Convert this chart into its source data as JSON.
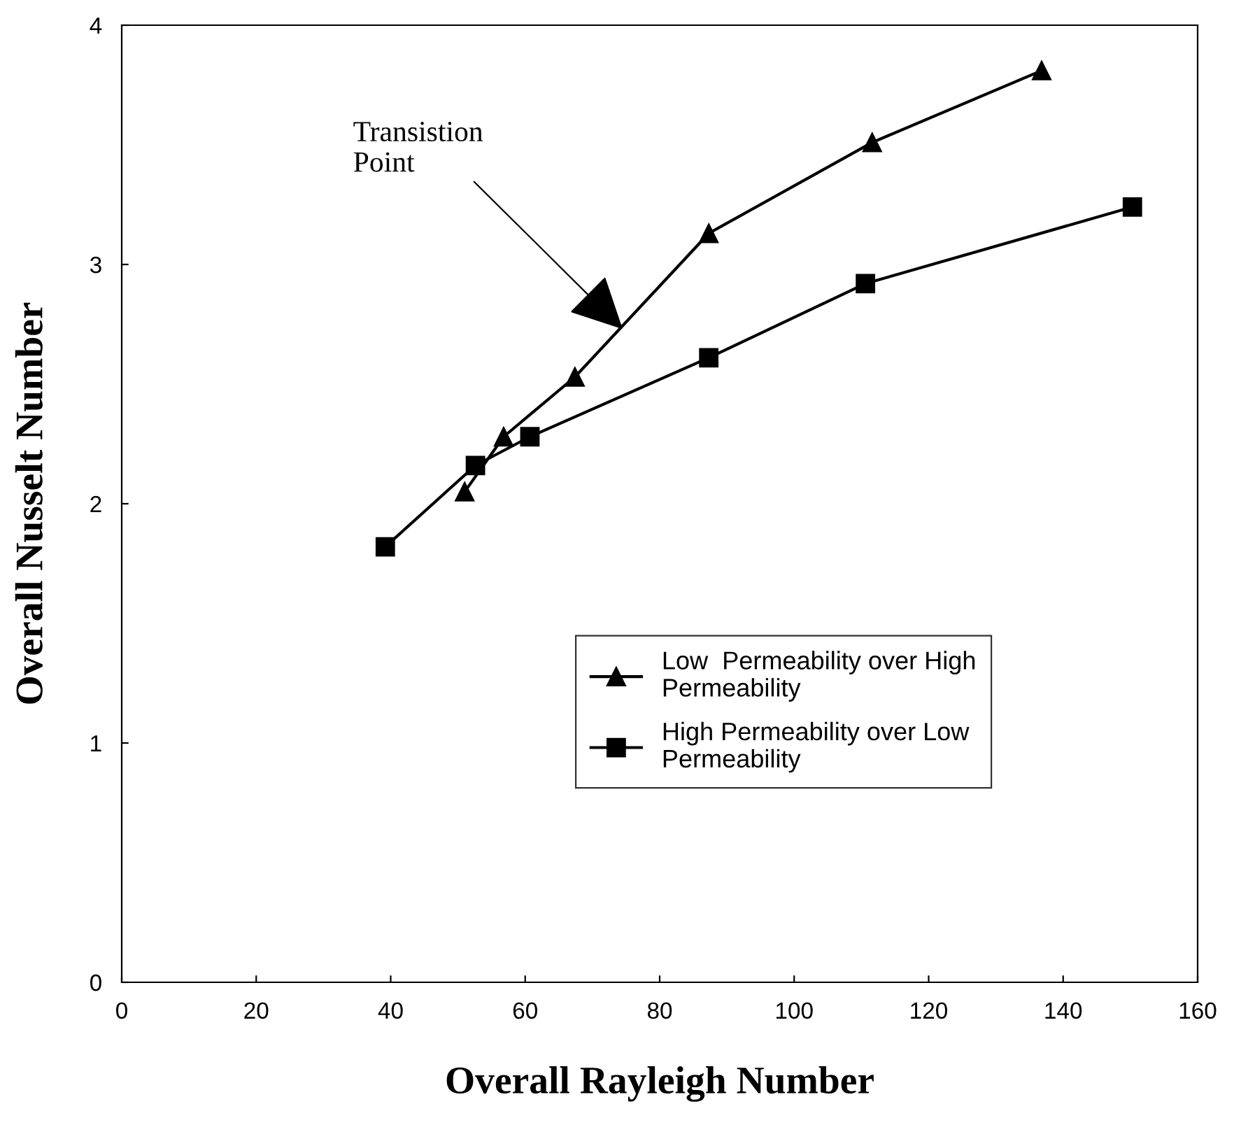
{
  "chart_data": {
    "type": "line",
    "xlabel": "Overall Rayleigh Number",
    "ylabel": "Overall Nusselt Number",
    "series": [
      {
        "name": "Low  Permeability over High\nPermeability",
        "color": "#000000",
        "marker": "triangle",
        "x": [
          51.0,
          56.8,
          67.4,
          87.3,
          111.6,
          136.8
        ],
        "values": [
          2.05,
          2.28,
          2.53,
          3.13,
          3.51,
          3.81
        ]
      },
      {
        "name": "High Permeability over Low\nPermeability",
        "color": "#000000",
        "marker": "square",
        "x": [
          39.2,
          52.6,
          60.7,
          87.3,
          110.6,
          150.3
        ],
        "values": [
          1.82,
          2.16,
          2.28,
          2.61,
          2.92,
          3.24
        ]
      }
    ],
    "annotations": [
      {
        "text": "Transistion\nPoint",
        "x": 74.5,
        "y": 2.73
      }
    ],
    "xlim": [
      0,
      160
    ],
    "xticks": [
      0,
      20,
      40,
      60,
      80,
      100,
      120,
      140,
      160
    ],
    "ylim": [
      0,
      4
    ],
    "yticks": [
      0,
      1,
      2,
      3,
      4
    ],
    "grid": false,
    "legend": "bottom right",
    "line_style": "solid"
  }
}
